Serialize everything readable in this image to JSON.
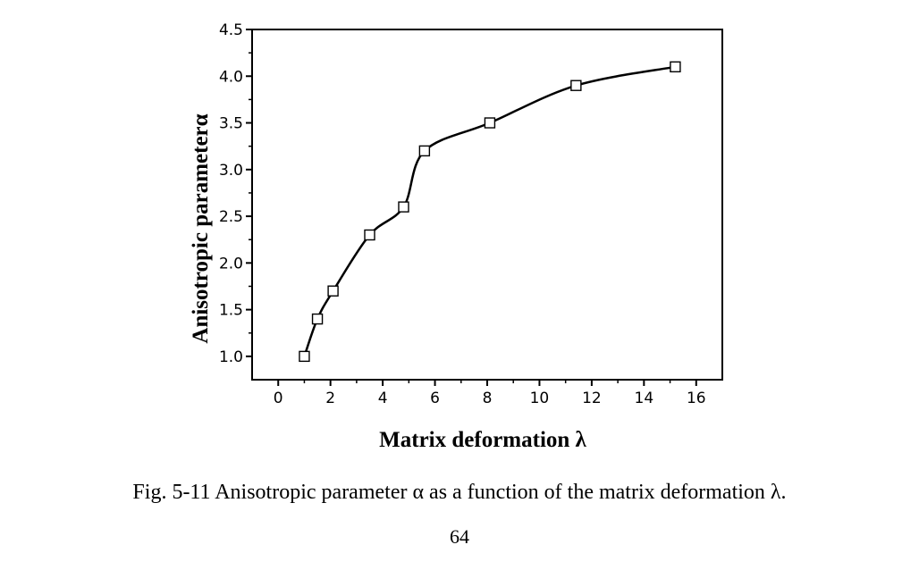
{
  "figure": {
    "caption": "Fig. 5-11 Anisotropic parameter α as a function of the matrix deformation λ.",
    "page_number": "64"
  },
  "chart_data": {
    "type": "scatter",
    "xlabel": "Matrix deformation λ",
    "ylabel": "Anisotropic parameterα",
    "xlim": [
      -1,
      17
    ],
    "ylim": [
      0.75,
      4.5
    ],
    "xticks": [
      0,
      2,
      4,
      6,
      8,
      10,
      12,
      14,
      16
    ],
    "xtick_labels": [
      "0",
      "2",
      "4",
      "6",
      "8",
      "10",
      "12",
      "14",
      "16"
    ],
    "yticks": [
      1.0,
      1.5,
      2.0,
      2.5,
      3.0,
      3.5,
      4.0,
      4.5
    ],
    "ytick_labels": [
      "1.0",
      "1.5",
      "2.0",
      "2.5",
      "3.0",
      "3.5",
      "4.0",
      "4.5"
    ],
    "marker": "open-square",
    "smooth_fit_line": true,
    "grid": false,
    "series": [
      {
        "x": [
          1.0,
          1.5,
          2.1,
          3.5,
          4.8,
          5.6,
          8.1,
          11.4,
          15.2
        ],
        "y": [
          1.0,
          1.4,
          1.7,
          2.3,
          2.6,
          3.2,
          3.5,
          3.9,
          4.1
        ]
      }
    ],
    "colors": {
      "line": "#000000",
      "marker_fill": "#ffffff",
      "marker_stroke": "#000000"
    }
  }
}
